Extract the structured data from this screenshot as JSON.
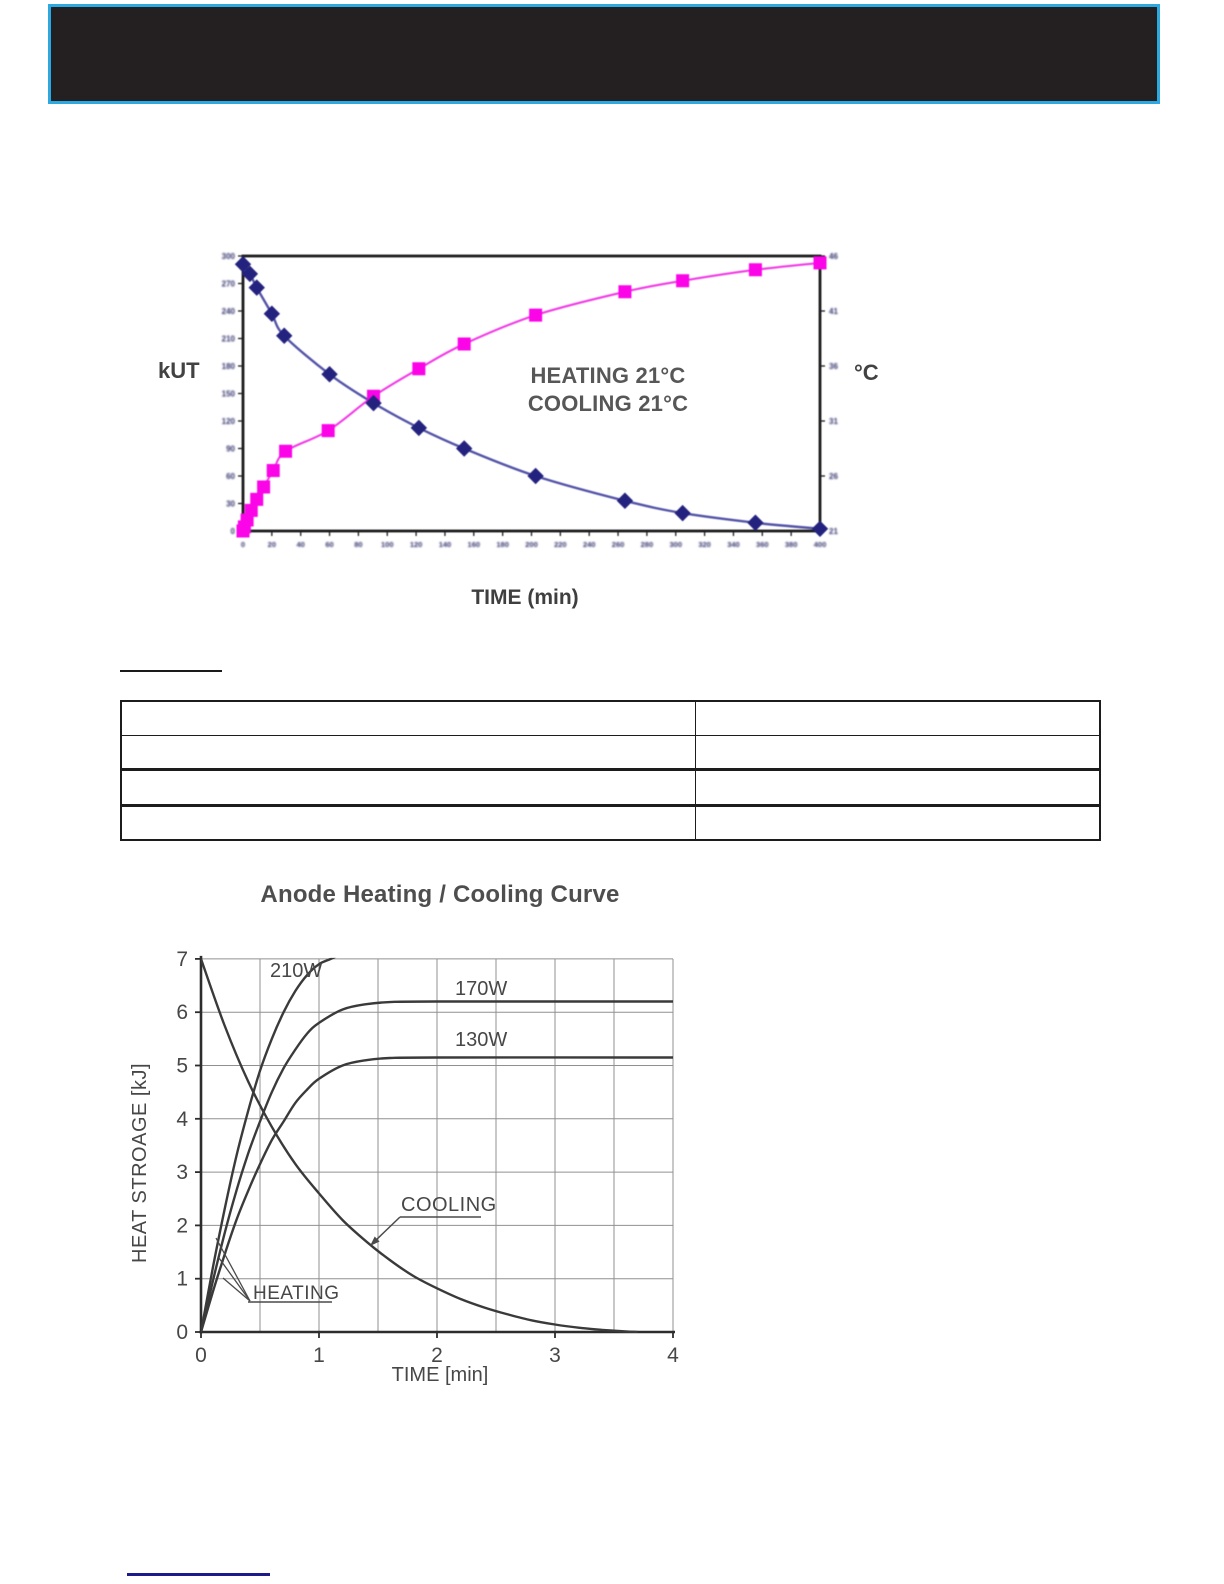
{
  "header": {
    "bg": "#242021",
    "border_color": "#2BA9E0"
  },
  "decorations": {
    "section_rule_color": "#1a1a1a",
    "bottom_rule_color": "#1b1b8c"
  },
  "table": {
    "rows": [
      [
        "",
        ""
      ],
      [
        "",
        ""
      ],
      [
        "",
        ""
      ],
      [
        "",
        ""
      ]
    ],
    "border_color": "#1c1c1c",
    "columns": 2
  },
  "chart_data": [
    {
      "id": "heating-cooling-21c",
      "type": "line",
      "title": "",
      "xlabel": "TIME (min)",
      "ylabel_left": "kUT",
      "ylabel_right": "°C",
      "annotation": [
        "HEATING 21°C",
        "COOLING 21°C"
      ],
      "tick_labels_legible": false,
      "ticks": {
        "left": [
          "300",
          "270",
          "240",
          "210",
          "180",
          "150",
          "120",
          "90",
          "60",
          "30",
          "0"
        ],
        "right": [
          "46",
          "41",
          "36",
          "31",
          "26",
          "21"
        ],
        "bottom": [
          "0",
          "20",
          "40",
          "60",
          "80",
          "100",
          "120",
          "140",
          "160",
          "180",
          "200",
          "220",
          "240",
          "260",
          "280",
          "300",
          "320",
          "340",
          "360",
          "380",
          "400"
        ]
      },
      "colors": {
        "heating_line": "#f23ae6",
        "heating_marker": "#fb04e8",
        "cooling_line": "#5353a8",
        "cooling_marker": "#23237f",
        "axis": "#1c1c1c",
        "tick_text": "#33336e"
      },
      "series": [
        {
          "name": "heating",
          "marker": "square",
          "points": [
            [
              0,
              0
            ],
            [
              1,
              1.5
            ],
            [
              3,
              4
            ],
            [
              6,
              7.5
            ],
            [
              10,
              11.5
            ],
            [
              15,
              16
            ],
            [
              22,
              22
            ],
            [
              31,
              29
            ],
            [
              62,
              36.5
            ],
            [
              95,
              49
            ],
            [
              128,
              59
            ],
            [
              161,
              68
            ],
            [
              213,
              78.5
            ],
            [
              278,
              87
            ],
            [
              320,
              91
            ],
            [
              373,
              95
            ],
            [
              420,
              97.5
            ]
          ]
        },
        {
          "name": "cooling",
          "marker": "diamond",
          "points": [
            [
              0,
              97
            ],
            [
              5,
              93.5
            ],
            [
              10,
              88.5
            ],
            [
              21,
              79
            ],
            [
              30,
              71
            ],
            [
              63,
              57
            ],
            [
              95,
              46.5
            ],
            [
              128,
              37.5
            ],
            [
              161,
              30
            ],
            [
              213,
              20
            ],
            [
              278,
              11
            ],
            [
              320,
              6.5
            ],
            [
              373,
              3
            ],
            [
              420,
              0.8
            ]
          ]
        }
      ],
      "x_range_estimated_min": [
        0,
        420
      ],
      "y_range_percent": [
        0,
        100
      ]
    },
    {
      "id": "anode-heating-cooling",
      "type": "line",
      "title": "Anode Heating / Cooling Curve",
      "xlabel": "TIME  [min]",
      "ylabel": "HEAT STROAGE  [kJ]",
      "xlim": [
        0,
        4
      ],
      "ylim": [
        0,
        7
      ],
      "x_ticks": [
        "0",
        "1",
        "2",
        "3",
        "4"
      ],
      "y_ticks": [
        "0",
        "1",
        "2",
        "3",
        "4",
        "5",
        "6",
        "7"
      ],
      "grid": {
        "x_step": 0.5,
        "y_step": 1,
        "color": "#909090"
      },
      "curve_color": "#3a3a3a",
      "labels": {
        "w210": "210W",
        "w170": "170W",
        "w130": "130W",
        "cooling": "COOLING",
        "heating": "HEATING"
      },
      "series": [
        {
          "name": "210W",
          "points": [
            [
              0,
              0
            ],
            [
              0.1,
              1.2
            ],
            [
              0.2,
              2.3
            ],
            [
              0.3,
              3.3
            ],
            [
              0.4,
              4.15
            ],
            [
              0.5,
              4.9
            ],
            [
              0.6,
              5.5
            ],
            [
              0.7,
              6.0
            ],
            [
              0.8,
              6.4
            ],
            [
              0.9,
              6.7
            ],
            [
              1.0,
              6.9
            ],
            [
              1.1,
              7.0
            ],
            [
              1.25,
              7.15
            ]
          ]
        },
        {
          "name": "170W",
          "points": [
            [
              0,
              0
            ],
            [
              0.1,
              0.95
            ],
            [
              0.2,
              1.85
            ],
            [
              0.3,
              2.65
            ],
            [
              0.4,
              3.35
            ],
            [
              0.5,
              3.95
            ],
            [
              0.6,
              4.5
            ],
            [
              0.7,
              4.95
            ],
            [
              0.8,
              5.3
            ],
            [
              0.9,
              5.6
            ],
            [
              1.0,
              5.8
            ],
            [
              1.2,
              6.05
            ],
            [
              1.4,
              6.15
            ],
            [
              1.6,
              6.19
            ],
            [
              2.0,
              6.2
            ],
            [
              4.0,
              6.2
            ]
          ]
        },
        {
          "name": "130W",
          "points": [
            [
              0,
              0
            ],
            [
              0.1,
              0.75
            ],
            [
              0.2,
              1.45
            ],
            [
              0.3,
              2.1
            ],
            [
              0.4,
              2.65
            ],
            [
              0.5,
              3.15
            ],
            [
              0.6,
              3.6
            ],
            [
              0.7,
              3.95
            ],
            [
              0.8,
              4.3
            ],
            [
              0.9,
              4.55
            ],
            [
              1.0,
              4.75
            ],
            [
              1.2,
              5.0
            ],
            [
              1.4,
              5.1
            ],
            [
              1.6,
              5.14
            ],
            [
              2.0,
              5.15
            ],
            [
              4.0,
              5.15
            ]
          ]
        },
        {
          "name": "COOLING",
          "points": [
            [
              0,
              7
            ],
            [
              0.2,
              5.75
            ],
            [
              0.4,
              4.7
            ],
            [
              0.6,
              3.85
            ],
            [
              0.8,
              3.15
            ],
            [
              1.0,
              2.6
            ],
            [
              1.2,
              2.1
            ],
            [
              1.4,
              1.7
            ],
            [
              1.6,
              1.35
            ],
            [
              1.8,
              1.05
            ],
            [
              2.0,
              0.82
            ],
            [
              2.2,
              0.62
            ],
            [
              2.4,
              0.46
            ],
            [
              2.6,
              0.33
            ],
            [
              2.8,
              0.22
            ],
            [
              3.0,
              0.14
            ],
            [
              3.2,
              0.08
            ],
            [
              3.4,
              0.04
            ],
            [
              3.6,
              0.01
            ],
            [
              3.7,
              0
            ]
          ]
        }
      ]
    }
  ]
}
